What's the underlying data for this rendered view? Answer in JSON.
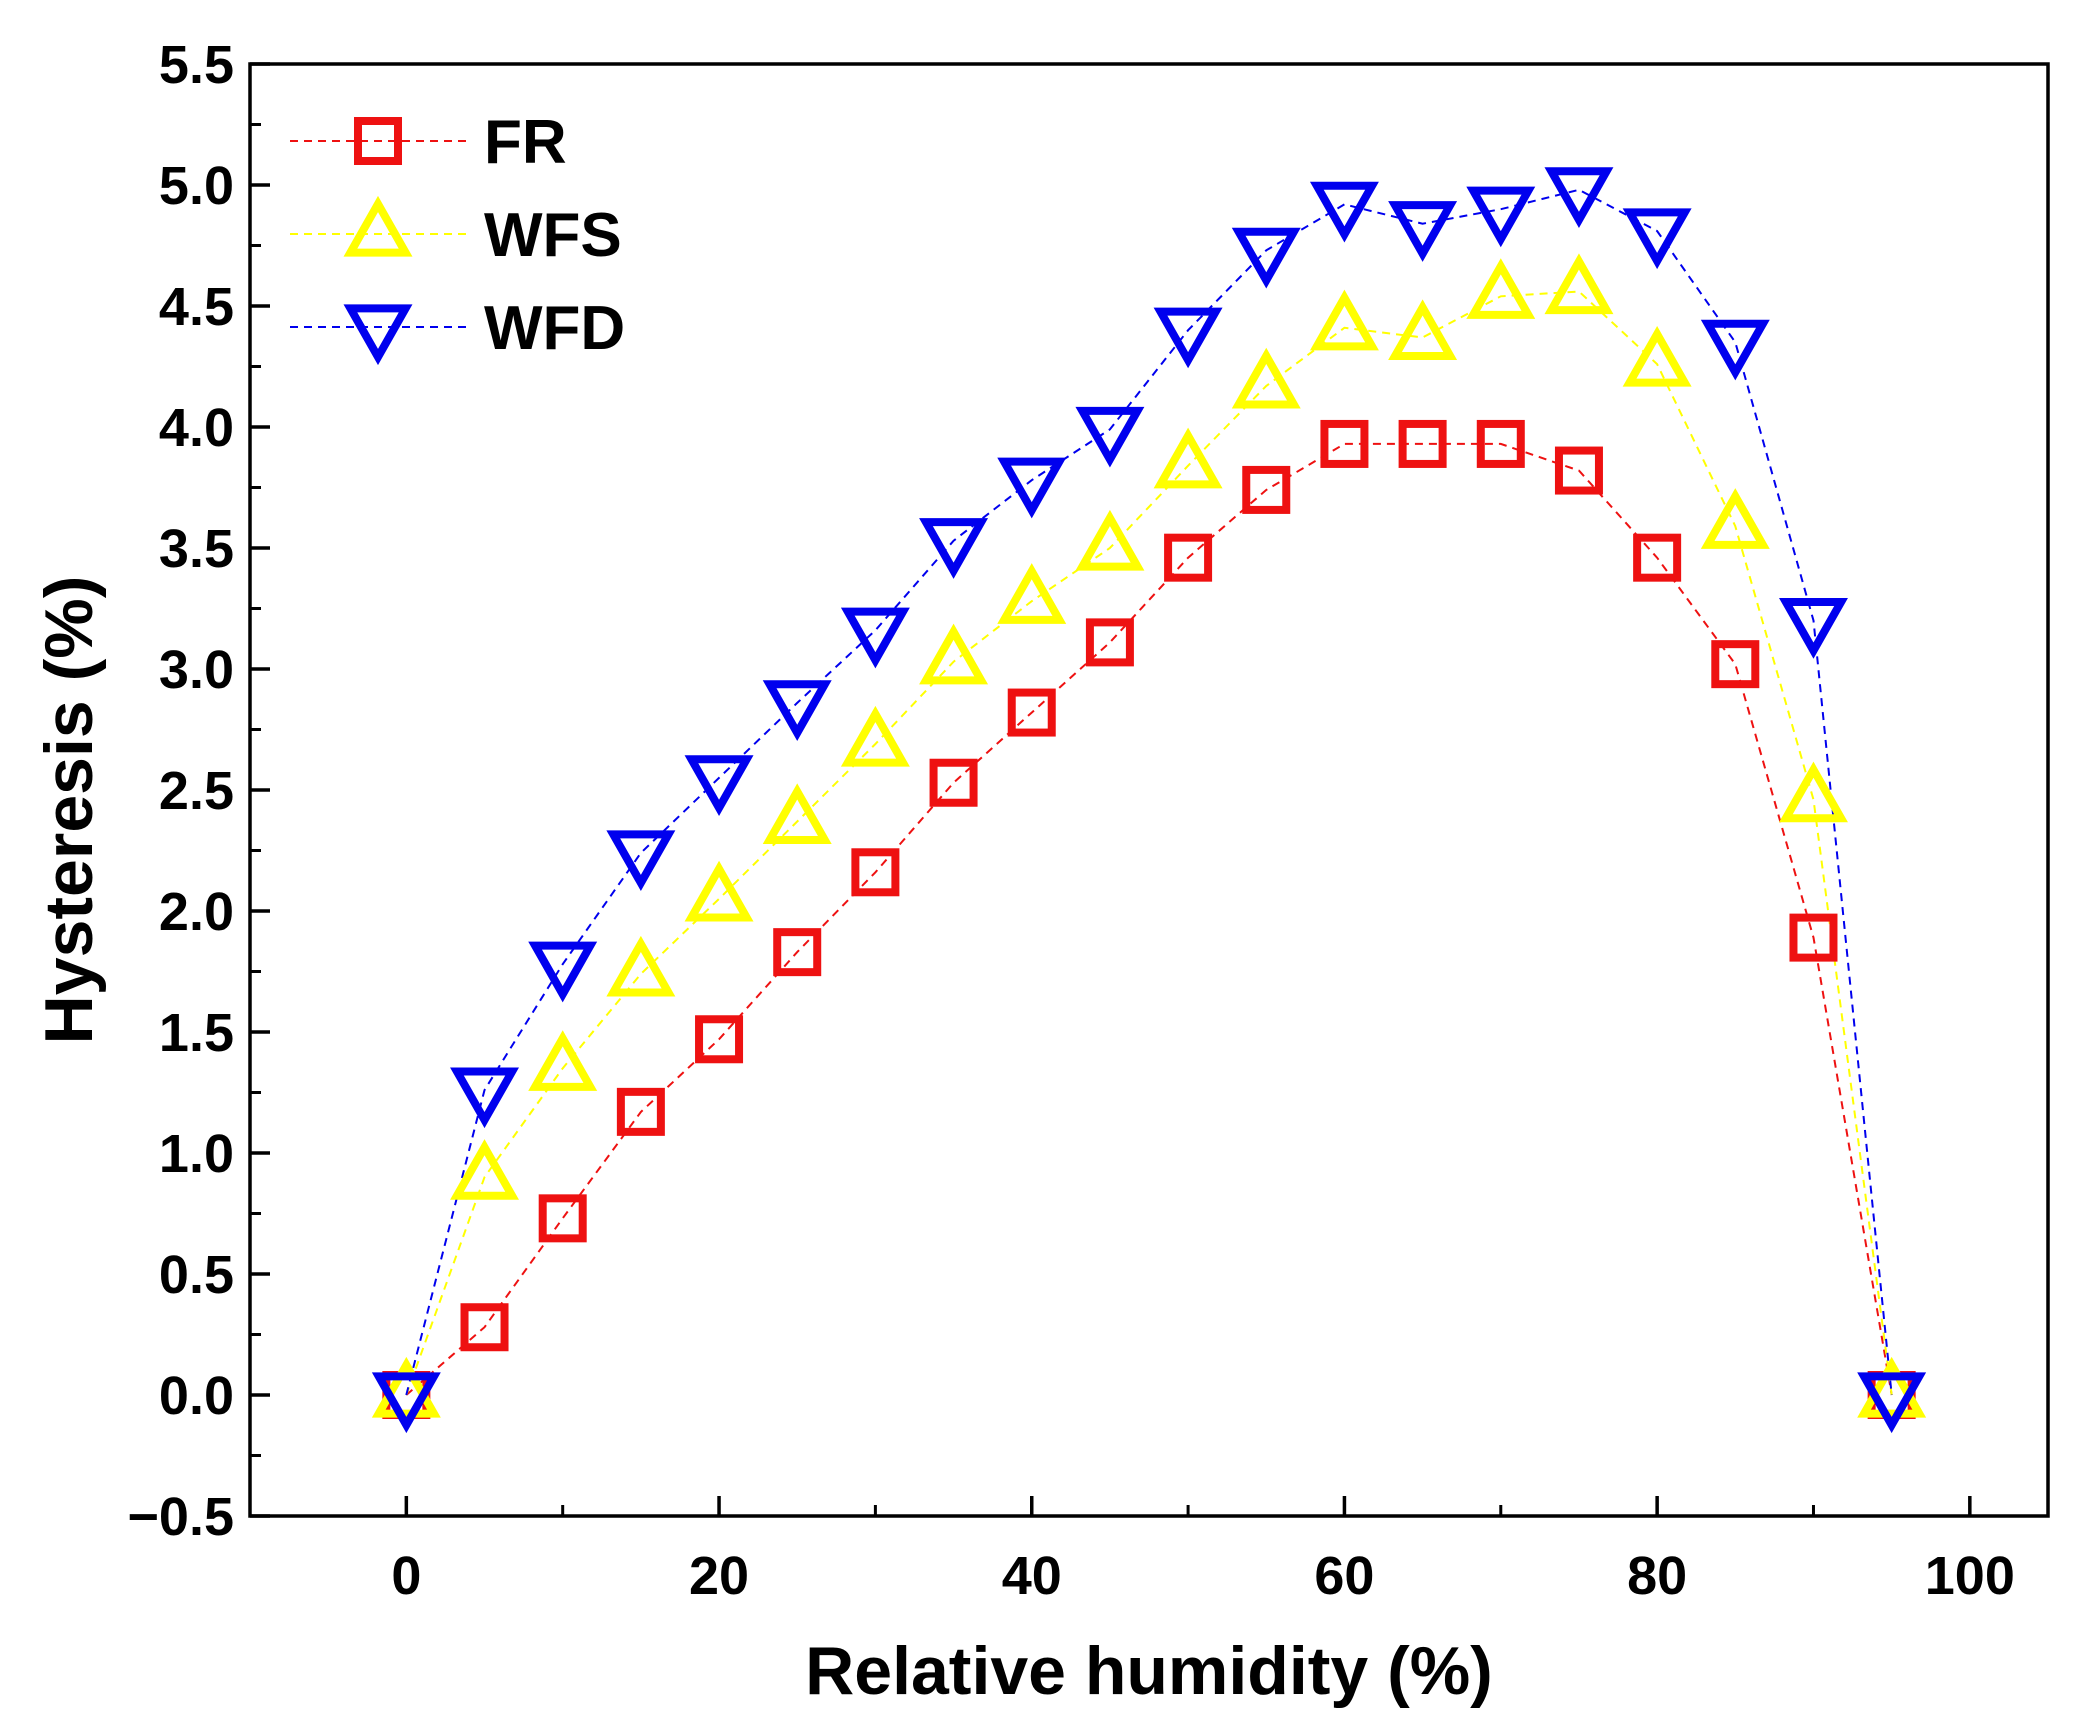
{
  "chart_data": {
    "type": "line",
    "xlabel": "Relative humidity (%)",
    "ylabel": "Hysteresis (%)",
    "xlim": [
      -10,
      105
    ],
    "ylim": [
      -0.5,
      5.5
    ],
    "xticks": [
      0,
      20,
      40,
      60,
      80,
      100
    ],
    "xtick_labels": [
      "0",
      "20",
      "40",
      "60",
      "80",
      "100"
    ],
    "yticks": [
      -0.5,
      0.0,
      0.5,
      1.0,
      1.5,
      2.0,
      2.5,
      3.0,
      3.5,
      4.0,
      4.5,
      5.0,
      5.5
    ],
    "ytick_labels": [
      "−0.5",
      "0.0",
      "0.5",
      "1.0",
      "1.5",
      "2.0",
      "2.5",
      "3.0",
      "3.5",
      "4.0",
      "4.5",
      "5.0",
      "5.5"
    ],
    "grid": false,
    "legend_position": "top-left",
    "x": [
      0,
      5,
      10,
      15,
      20,
      25,
      30,
      35,
      40,
      45,
      50,
      55,
      60,
      65,
      70,
      75,
      80,
      85,
      90,
      95
    ],
    "series": [
      {
        "name": "FR",
        "marker": "square",
        "color": "#ee1111",
        "values": [
          0.0,
          0.28,
          0.73,
          1.17,
          1.47,
          1.83,
          2.16,
          2.53,
          2.82,
          3.11,
          3.46,
          3.74,
          3.93,
          3.93,
          3.93,
          3.82,
          3.46,
          3.02,
          1.89,
          0.0
        ]
      },
      {
        "name": "WFS",
        "marker": "triangle-up",
        "color": "#ffff00",
        "values": [
          0.0,
          0.9,
          1.35,
          1.74,
          2.05,
          2.37,
          2.69,
          3.03,
          3.28,
          3.5,
          3.84,
          4.17,
          4.41,
          4.37,
          4.54,
          4.56,
          4.26,
          3.59,
          2.46,
          0.0
        ]
      },
      {
        "name": "WFD",
        "marker": "triangle-down",
        "color": "#0000ee",
        "values": [
          0.0,
          1.26,
          1.78,
          2.24,
          2.55,
          2.86,
          3.16,
          3.53,
          3.78,
          3.99,
          4.4,
          4.73,
          4.92,
          4.84,
          4.9,
          4.98,
          4.81,
          4.35,
          3.2,
          0.0
        ]
      }
    ]
  }
}
